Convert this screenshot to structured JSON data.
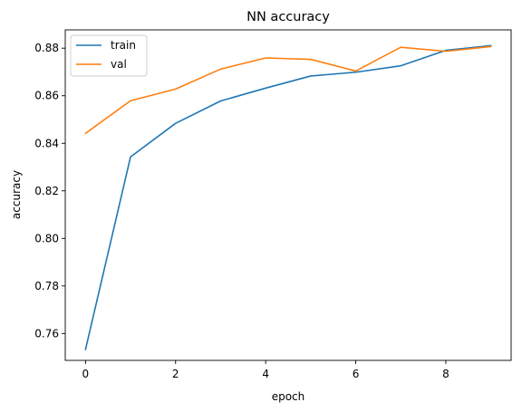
{
  "chart_data": {
    "type": "line",
    "title": "NN accuracy",
    "xlabel": "epoch",
    "ylabel": "accuracy",
    "x": [
      0,
      1,
      2,
      3,
      4,
      5,
      6,
      7,
      8,
      9
    ],
    "xlim": [
      -0.45,
      9.45
    ],
    "ylim": [
      0.7487,
      0.8877
    ],
    "xticks": [
      0,
      2,
      4,
      6,
      8
    ],
    "yticks": [
      0.76,
      0.78,
      0.8,
      0.82,
      0.84,
      0.86,
      0.88
    ],
    "xtick_labels": [
      "0",
      "2",
      "4",
      "6",
      "8"
    ],
    "ytick_labels": [
      "0.76",
      "0.78",
      "0.80",
      "0.82",
      "0.84",
      "0.86",
      "0.88"
    ],
    "grid": false,
    "legend_position": "upper-left",
    "series": [
      {
        "name": "train",
        "color": "#1f77b4",
        "values": [
          0.7533,
          0.8343,
          0.8484,
          0.8578,
          0.8632,
          0.8683,
          0.8699,
          0.8726,
          0.8791,
          0.8811
        ]
      },
      {
        "name": "val",
        "color": "#ff7f0e",
        "values": [
          0.8442,
          0.8579,
          0.8628,
          0.8712,
          0.8759,
          0.8753,
          0.8704,
          0.8804,
          0.8787,
          0.8807
        ]
      }
    ]
  }
}
